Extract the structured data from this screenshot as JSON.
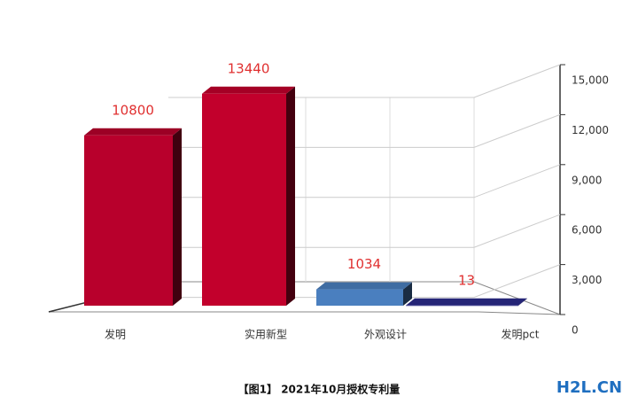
{
  "chart_data": {
    "type": "bar3d",
    "categories": [
      "发明",
      "实用新型",
      "外观设计",
      "发明pct"
    ],
    "values": [
      10800,
      13440,
      1034,
      13
    ],
    "colors": [
      "#b8002c",
      "#c2002c",
      "#4a7fbf",
      "#2b2b8c"
    ],
    "ylim": [
      0,
      15000
    ],
    "yticks": [
      0,
      {
        "value": 3000,
        "label": "3,000"
      },
      {
        "value": 6000,
        "label": "6,000"
      },
      {
        "value": 9000,
        "label": "9,000"
      },
      {
        "value": 12000,
        "label": "12,000"
      },
      {
        "value": 15000,
        "label": "15,000"
      }
    ],
    "grid": true,
    "caption": "【图1】 2021年10月授权专利量",
    "watermark": "H2L.CN"
  }
}
